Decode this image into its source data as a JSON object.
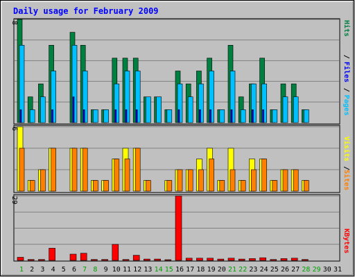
{
  "chart_data": {
    "type": "bar",
    "title": "Daily usage for February 2009",
    "categories": [
      "1",
      "2",
      "3",
      "4",
      "5",
      "6",
      "7",
      "8",
      "9",
      "10",
      "11",
      "12",
      "13",
      "14",
      "15",
      "16",
      "17",
      "18",
      "19",
      "20",
      "21",
      "22",
      "23",
      "24",
      "25",
      "26",
      "27",
      "28",
      "29",
      "30",
      "31"
    ],
    "weekend_days": [
      "1",
      "7",
      "8",
      "14",
      "15",
      "21",
      "22",
      "28",
      "29"
    ],
    "panels": [
      {
        "id": "hits",
        "ymax": 8,
        "ymax_label": "8",
        "grid": true,
        "series": [
          {
            "name": "Hits",
            "color": "#008040",
            "values": [
              8,
              2,
              3,
              6,
              0,
              7,
              6,
              1,
              1,
              5,
              5,
              5,
              2,
              2,
              1,
              4,
              3,
              4,
              5,
              1,
              6,
              2,
              3,
              5,
              1,
              3,
              3,
              1,
              0,
              0,
              0
            ]
          },
          {
            "name": "Files",
            "color": "#00c0ff",
            "values": [
              6,
              1,
              2,
              4,
              0,
              6,
              4,
              1,
              1,
              3,
              4,
              4,
              2,
              2,
              1,
              3,
              2,
              3,
              4,
              1,
              4,
              1,
              3,
              3,
              1,
              2,
              2,
              1,
              0,
              0,
              0
            ]
          },
          {
            "name": "Pages",
            "color": "#0000ff",
            "values": [
              1,
              0,
              0,
              1,
              0,
              2,
              1,
              0,
              0,
              1,
              1,
              1,
              0,
              0,
              0,
              1,
              0,
              1,
              1,
              0,
              1,
              0,
              1,
              1,
              0,
              0,
              0,
              0,
              0,
              0,
              0
            ]
          }
        ]
      },
      {
        "id": "visits",
        "ymax": 6,
        "ymax_label": "6",
        "grid": true,
        "series": [
          {
            "name": "Visits",
            "color": "#ffff00",
            "values": [
              6,
              1,
              2,
              4,
              0,
              4,
              4,
              1,
              1,
              3,
              4,
              4,
              1,
              0,
              1,
              2,
              2,
              3,
              4,
              1,
              4,
              1,
              3,
              3,
              1,
              2,
              2,
              1,
              0,
              0,
              0
            ]
          },
          {
            "name": "Sites",
            "color": "#ff8000",
            "values": [
              4,
              1,
              2,
              4,
              0,
              4,
              4,
              1,
              1,
              3,
              3,
              4,
              1,
              0,
              1,
              2,
              2,
              2,
              3,
              1,
              2,
              1,
              2,
              3,
              1,
              2,
              2,
              1,
              0,
              0,
              0
            ]
          }
        ]
      },
      {
        "id": "kbytes",
        "ymax": 29,
        "ymax_label": "29",
        "grid": true,
        "series": [
          {
            "name": "KBytes",
            "color": "#ff0000",
            "values": [
              1.4,
              0.4,
              0.4,
              5.5,
              0,
              2.8,
              3.2,
              0.4,
              0.4,
              7.2,
              0.4,
              2.3,
              0.6,
              0.6,
              0.3,
              29,
              1,
              1,
              1,
              0.6,
              1,
              0.6,
              0.8,
              1.2,
              0.4,
              0.8,
              1,
              0.4,
              0,
              0,
              0
            ]
          }
        ]
      }
    ],
    "legend_placement": "right"
  }
}
